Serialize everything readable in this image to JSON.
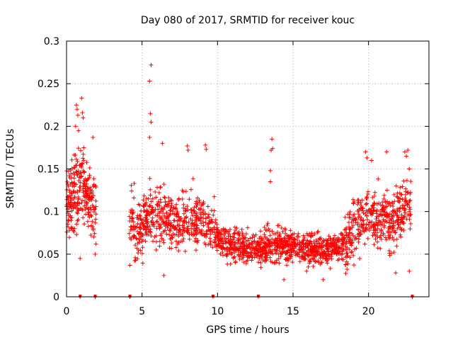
{
  "chart_data": {
    "type": "scatter",
    "title": "Day 080 of 2017, SRMTID for receiver kouc",
    "xlabel": "GPS time / hours",
    "ylabel": "SRMTID / TECUs",
    "xlim": [
      0,
      24
    ],
    "ylim": [
      0,
      0.3
    ],
    "xticks": [
      0,
      5,
      10,
      15,
      20
    ],
    "xtick_labels": [
      "0",
      "5",
      "10",
      "15",
      "20"
    ],
    "yticks": [
      0,
      0.05,
      0.1,
      0.15,
      0.2,
      0.25,
      0.3
    ],
    "ytick_labels": [
      "0",
      "0.05",
      "0.1",
      "0.15",
      "0.2",
      "0.25",
      "0.3"
    ],
    "grid": true,
    "marker": "+",
    "color": "#ff0000",
    "zero_value_times": [
      0.9,
      1.9,
      4.2,
      4.2,
      9.7,
      12.7,
      22.9
    ],
    "trend": [
      {
        "x": 0.0,
        "y": 0.112
      },
      {
        "x": 0.5,
        "y": 0.115
      },
      {
        "x": 0.8,
        "y": 0.125
      },
      {
        "x": 1.0,
        "y": 0.14
      },
      {
        "x": 1.3,
        "y": 0.12
      },
      {
        "x": 1.6,
        "y": 0.11
      },
      {
        "x": 1.9,
        "y": 0.105
      },
      {
        "x": 4.3,
        "y": 0.09
      },
      {
        "x": 4.8,
        "y": 0.075
      },
      {
        "x": 5.3,
        "y": 0.095
      },
      {
        "x": 5.6,
        "y": 0.1
      },
      {
        "x": 6.0,
        "y": 0.09
      },
      {
        "x": 6.5,
        "y": 0.1
      },
      {
        "x": 7.0,
        "y": 0.085
      },
      {
        "x": 8.0,
        "y": 0.09
      },
      {
        "x": 9.0,
        "y": 0.085
      },
      {
        "x": 9.8,
        "y": 0.08
      },
      {
        "x": 10.2,
        "y": 0.063
      },
      {
        "x": 11.0,
        "y": 0.06
      },
      {
        "x": 12.0,
        "y": 0.058
      },
      {
        "x": 13.0,
        "y": 0.058
      },
      {
        "x": 14.0,
        "y": 0.062
      },
      {
        "x": 15.0,
        "y": 0.06
      },
      {
        "x": 16.0,
        "y": 0.058
      },
      {
        "x": 17.0,
        "y": 0.055
      },
      {
        "x": 18.0,
        "y": 0.057
      },
      {
        "x": 18.5,
        "y": 0.065
      },
      {
        "x": 19.0,
        "y": 0.08
      },
      {
        "x": 19.5,
        "y": 0.088
      },
      {
        "x": 20.0,
        "y": 0.1
      },
      {
        "x": 20.5,
        "y": 0.095
      },
      {
        "x": 21.0,
        "y": 0.09
      },
      {
        "x": 21.5,
        "y": 0.085
      },
      {
        "x": 22.0,
        "y": 0.095
      },
      {
        "x": 22.5,
        "y": 0.105
      },
      {
        "x": 22.7,
        "y": 0.1
      }
    ],
    "segments": [
      {
        "from": 0.0,
        "to": 1.95,
        "spread": 0.035,
        "count": 260
      },
      {
        "from": 4.15,
        "to": 9.85,
        "spread": 0.028,
        "count": 520
      },
      {
        "from": 9.85,
        "to": 18.45,
        "spread": 0.016,
        "count": 900
      },
      {
        "from": 18.45,
        "to": 22.8,
        "spread": 0.028,
        "count": 420
      }
    ],
    "outliers": [
      {
        "x": 0.65,
        "y": 0.225
      },
      {
        "x": 0.7,
        "y": 0.22
      },
      {
        "x": 0.75,
        "y": 0.213
      },
      {
        "x": 1.0,
        "y": 0.233
      },
      {
        "x": 1.05,
        "y": 0.216
      },
      {
        "x": 1.1,
        "y": 0.21
      },
      {
        "x": 0.8,
        "y": 0.195
      },
      {
        "x": 0.6,
        "y": 0.2
      },
      {
        "x": 0.9,
        "y": 0.045
      },
      {
        "x": 1.75,
        "y": 0.187
      },
      {
        "x": 1.9,
        "y": 0.05
      },
      {
        "x": 1.95,
        "y": 0.062
      },
      {
        "x": 5.6,
        "y": 0.272
      },
      {
        "x": 5.5,
        "y": 0.253
      },
      {
        "x": 5.55,
        "y": 0.215
      },
      {
        "x": 5.6,
        "y": 0.205
      },
      {
        "x": 5.5,
        "y": 0.187
      },
      {
        "x": 6.35,
        "y": 0.18
      },
      {
        "x": 6.45,
        "y": 0.025
      },
      {
        "x": 4.2,
        "y": 0.037
      },
      {
        "x": 8.0,
        "y": 0.177
      },
      {
        "x": 8.05,
        "y": 0.172
      },
      {
        "x": 9.2,
        "y": 0.178
      },
      {
        "x": 9.25,
        "y": 0.173
      },
      {
        "x": 13.6,
        "y": 0.185
      },
      {
        "x": 13.65,
        "y": 0.174
      },
      {
        "x": 13.55,
        "y": 0.172
      },
      {
        "x": 13.5,
        "y": 0.148
      },
      {
        "x": 13.5,
        "y": 0.135
      },
      {
        "x": 14.4,
        "y": 0.02
      },
      {
        "x": 17.0,
        "y": 0.02
      },
      {
        "x": 15.9,
        "y": 0.03
      },
      {
        "x": 19.8,
        "y": 0.17
      },
      {
        "x": 19.9,
        "y": 0.163
      },
      {
        "x": 20.2,
        "y": 0.16
      },
      {
        "x": 21.2,
        "y": 0.17
      },
      {
        "x": 22.4,
        "y": 0.17
      },
      {
        "x": 22.6,
        "y": 0.172
      },
      {
        "x": 22.5,
        "y": 0.165
      },
      {
        "x": 22.7,
        "y": 0.15
      },
      {
        "x": 21.8,
        "y": 0.028
      },
      {
        "x": 22.7,
        "y": 0.03
      }
    ]
  }
}
